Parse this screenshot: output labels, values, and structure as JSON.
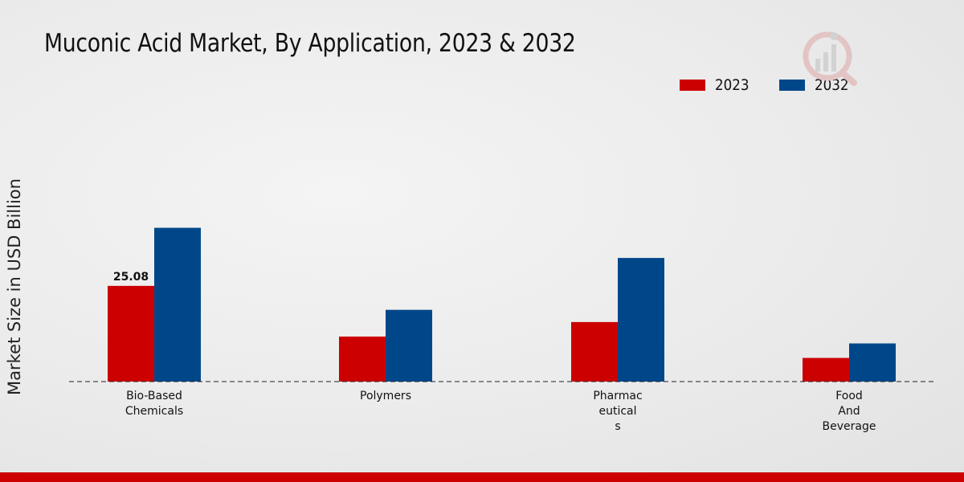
{
  "chart_data": {
    "type": "bar",
    "title": "Muconic Acid Market, By Application, 2023 & 2032",
    "xlabel": "",
    "ylabel": "Market Size in USD Billion",
    "categories": [
      [
        "Bio-Based",
        "Chemicals"
      ],
      [
        "Polymers"
      ],
      [
        "Pharmac",
        "eutical",
        "s"
      ],
      [
        "Food",
        "And",
        "Beverage"
      ]
    ],
    "series": [
      {
        "name": "2023",
        "color": "#cc0000",
        "values": [
          25.08,
          11.8,
          15.6,
          6.2
        ]
      },
      {
        "name": "2032",
        "color": "#00478a",
        "values": [
          40.3,
          18.8,
          32.4,
          10.0
        ]
      }
    ],
    "data_labels": [
      {
        "series": 0,
        "index": 0,
        "text": "25.08"
      }
    ],
    "ylim": [
      0,
      60
    ],
    "grid": false,
    "legend": "top-right"
  },
  "branding": {
    "accent_color": "#cc0000",
    "logo_icon": "market-research-logo-icon"
  }
}
